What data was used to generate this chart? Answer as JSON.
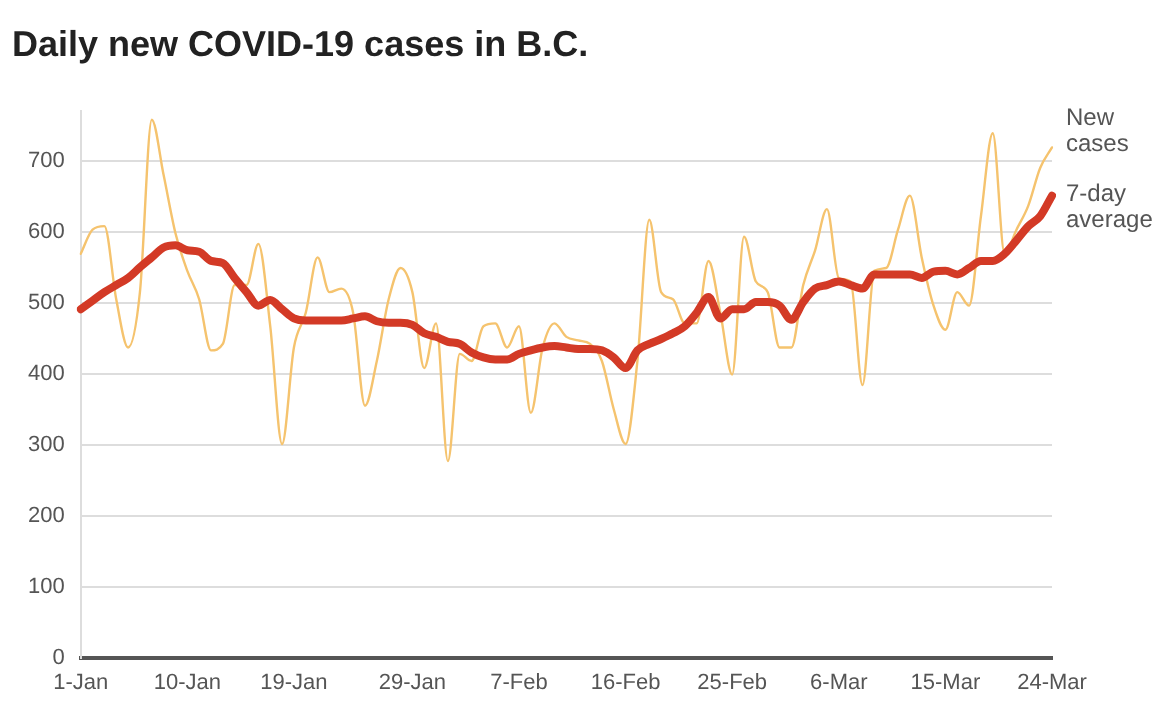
{
  "chart_data": {
    "type": "line",
    "title": "Daily new COVID-19 cases in B.C.",
    "categories": [
      "1-Jan",
      null,
      null,
      null,
      null,
      null,
      null,
      null,
      null,
      "10-Jan",
      null,
      null,
      null,
      null,
      null,
      null,
      null,
      null,
      "19-Jan",
      null,
      null,
      null,
      null,
      null,
      null,
      null,
      null,
      null,
      "29-Jan",
      null,
      null,
      null,
      null,
      null,
      null,
      null,
      null,
      "7-Feb",
      null,
      null,
      null,
      null,
      null,
      null,
      null,
      null,
      "16-Feb",
      null,
      null,
      null,
      null,
      null,
      null,
      null,
      null,
      "25-Feb",
      null,
      null,
      null,
      null,
      null,
      null,
      null,
      null,
      "6-Mar",
      null,
      null,
      null,
      null,
      null,
      null,
      null,
      null,
      "15-Mar",
      null,
      null,
      null,
      null,
      null,
      null,
      null,
      null,
      "24-Mar"
    ],
    "series": [
      {
        "name": "New cases",
        "color": "#f5c36e",
        "values": [
          569,
          603,
          608,
          505,
          437,
          515,
          758,
          680,
          598,
          545,
          505,
          433,
          442,
          525,
          525,
          583,
          467,
          301,
          437,
          486,
          564,
          515,
          520,
          486,
          355,
          418,
          505,
          549,
          515,
          408,
          471,
          277,
          428,
          418,
          467,
          471,
          437,
          467,
          345,
          437,
          471,
          452,
          447,
          442,
          418,
          350,
          301,
          418,
          617,
          515,
          505,
          471,
          471,
          559,
          486,
          399,
          593,
          530,
          515,
          437,
          437,
          525,
          574,
          632,
          535,
          530,
          384,
          545,
          549,
          603,
          651,
          564,
          496,
          462,
          515,
          496,
          622,
          739,
          569,
          603,
          637,
          690,
          719
        ]
      },
      {
        "name": "7-day average",
        "color": "#d33a26",
        "values": [
          491,
          503,
          515,
          525,
          535,
          550,
          564,
          578,
          581,
          574,
          572,
          559,
          556,
          535,
          515,
          496,
          504,
          491,
          478,
          475,
          475,
          475,
          475,
          478,
          481,
          474,
          472,
          472,
          469,
          457,
          452,
          445,
          442,
          430,
          423,
          420,
          420,
          428,
          433,
          437,
          439,
          437,
          435,
          435,
          433,
          423,
          408,
          433,
          442,
          449,
          457,
          467,
          486,
          508,
          478,
          491,
          491,
          501,
          501,
          496,
          476,
          501,
          520,
          525,
          530,
          525,
          520,
          540,
          540,
          540,
          540,
          535,
          544,
          545,
          540,
          549,
          559,
          559,
          569,
          588,
          608,
          622,
          651
        ]
      }
    ],
    "ylim": [
      0,
      770
    ],
    "yticks": [
      0,
      100,
      200,
      300,
      400,
      500,
      600,
      700
    ],
    "grid": "y",
    "legend": false,
    "marker": "none",
    "line_style": "solid"
  }
}
